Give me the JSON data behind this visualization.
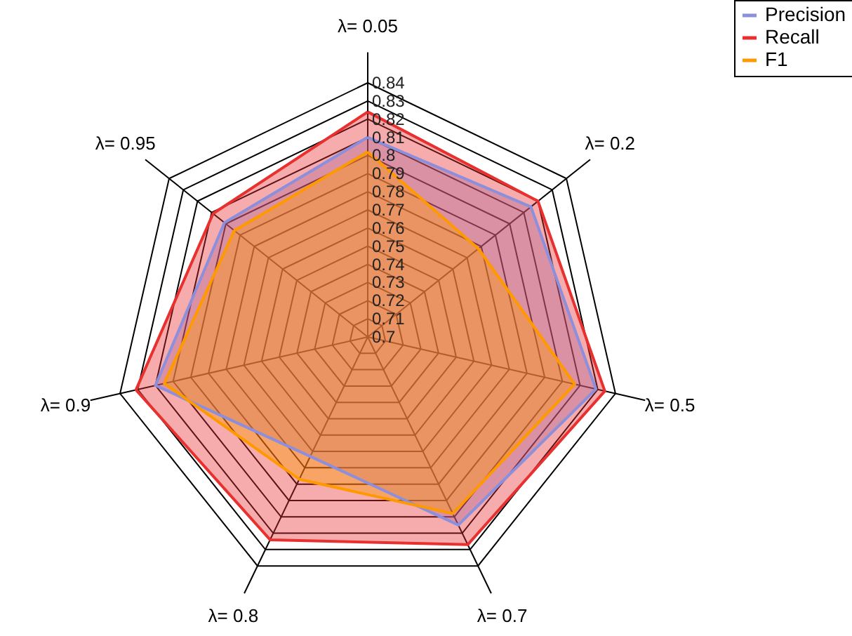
{
  "chart_data": {
    "type": "radar",
    "categories": [
      "λ= 0.05",
      "λ= 0.2",
      "λ= 0.5",
      "λ= 0.7",
      "λ= 0.8",
      "λ= 0.9",
      "λ= 0.95"
    ],
    "series": [
      {
        "name": "Precision",
        "color": "#8c8fdc",
        "values": [
          0.81,
          0.815,
          0.829,
          0.815,
          0.773,
          0.82,
          0.801
        ]
      },
      {
        "name": "Recall",
        "color": "#e8302f",
        "values": [
          0.824,
          0.82,
          0.834,
          0.827,
          0.824,
          0.831,
          0.809
        ]
      },
      {
        "name": "F1",
        "color": "#ff9900",
        "values": [
          0.802,
          0.778,
          0.817,
          0.808,
          0.787,
          0.815,
          0.794
        ]
      }
    ],
    "ylim": [
      0.7,
      0.84
    ],
    "yticks": [
      0.7,
      0.71,
      0.72,
      0.73,
      0.74,
      0.75,
      0.76,
      0.77,
      0.78,
      0.79,
      0.8,
      0.81,
      0.82,
      0.83,
      0.84
    ],
    "grid": true,
    "legend": "top right"
  }
}
